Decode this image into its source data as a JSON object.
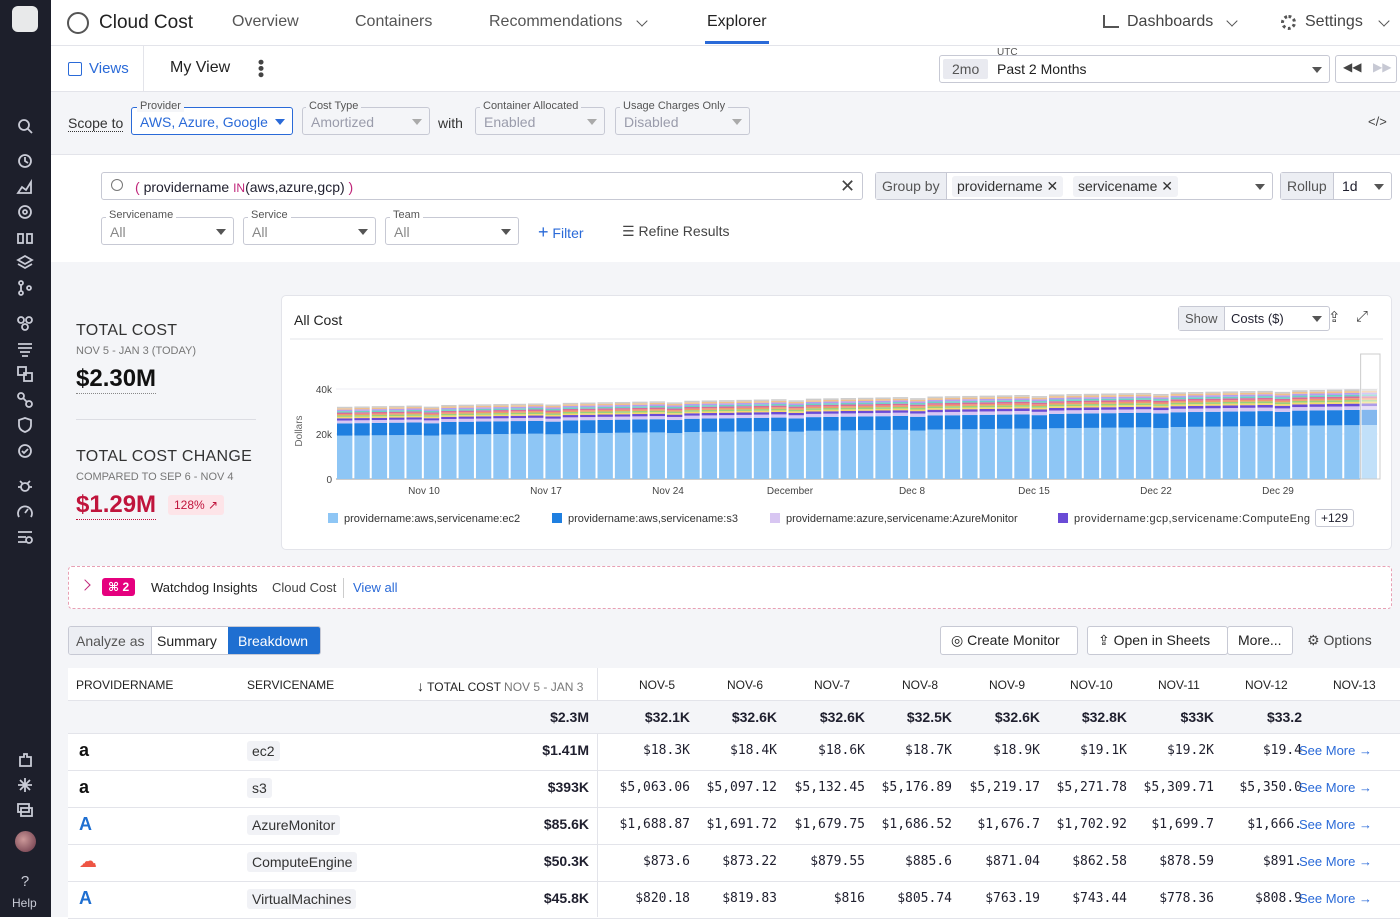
{
  "nav": {
    "app_title": "Cloud Cost",
    "overview": "Overview",
    "containers": "Containers",
    "recommendations": "Recommendations",
    "explorer": "Explorer",
    "dashboards": "Dashboards",
    "settings": "Settings",
    "help": "Help"
  },
  "views": {
    "views_label": "Views",
    "view_name": "My View",
    "tz": "UTC",
    "time_badge": "2mo",
    "time_value": "Past 2 Months"
  },
  "scope": {
    "scope_label": "Scope to",
    "provider_label": "Provider",
    "provider_value": "AWS, Azure, Google",
    "costtype_label": "Cost Type",
    "costtype_value": "Amortized",
    "with": "with",
    "container_label": "Container Allocated",
    "container_value": "Enabled",
    "usage_label": "Usage Charges Only",
    "usage_value": "Disabled"
  },
  "query": {
    "paren_open": "(",
    "key": "providername",
    "op": "IN",
    "val": "(aws,azure,gcp)",
    "paren_close": ")",
    "groupby_label": "Group by",
    "group1": "providername",
    "group2": "servicename",
    "rollup_label": "Rollup",
    "rollup_value": "1d"
  },
  "filters": {
    "servicename_label": "Servicename",
    "servicename_value": "All",
    "service_label": "Service",
    "service_value": "All",
    "team_label": "Team",
    "team_value": "All",
    "add_filter": "Filter",
    "refine": "Refine Results"
  },
  "kpi": {
    "total_title": "TOTAL COST",
    "total_range": "NOV 5 - JAN 3 (TODAY)",
    "total_value": "$2.30M",
    "change_title": "TOTAL COST CHANGE",
    "change_range": "COMPARED TO SEP 6 - NOV 4",
    "change_value": "$1.29M",
    "change_pct": "128% ↗"
  },
  "chart": {
    "title": "All Cost",
    "show": "Show",
    "show_value": "Costs ($)",
    "ylabel": "Dollars",
    "more_legend": "+129"
  },
  "chart_data": {
    "type": "bar",
    "stacked": true,
    "ylim": [
      0,
      40000
    ],
    "yticks": [
      "0",
      "20k",
      "40k"
    ],
    "xticks": [
      "Nov 10",
      "Nov 17",
      "Nov 24",
      "December",
      "Dec 8",
      "Dec 15",
      "Dec 22",
      "Dec 29"
    ],
    "series": [
      {
        "name": "providername:aws,servicename:ec2",
        "color": "#8ec6f5"
      },
      {
        "name": "providername:aws,servicename:s3",
        "color": "#1f7fe0"
      },
      {
        "name": "providername:azure,servicename:AzureMonitor",
        "color": "#d8c6f2"
      },
      {
        "name": "providername:gcp,servicename:ComputeEng",
        "color": "#6a4bd6"
      }
    ],
    "totals_start": 32100,
    "totals_end": 40000
  },
  "watchdog": {
    "count": "2",
    "label": "Watchdog Insights",
    "product": "Cloud Cost",
    "view_all": "View all"
  },
  "analyze": {
    "label": "Analyze as",
    "summary": "Summary",
    "breakdown": "Breakdown",
    "create_monitor": "Create Monitor",
    "open_sheets": "Open in Sheets",
    "more": "More...",
    "options": "Options"
  },
  "table": {
    "headers": {
      "provider": "PROVIDERNAME",
      "service": "SERVICENAME",
      "total": "TOTAL COST",
      "total_range": "NOV 5 - JAN 3",
      "d1": "NOV-5",
      "d2": "NOV-6",
      "d3": "NOV-7",
      "d4": "NOV-8",
      "d5": "NOV-9",
      "d6": "NOV-10",
      "d7": "NOV-11",
      "d8": "NOV-12",
      "d9": "NOV-13"
    },
    "totals": [
      "$2.3M",
      "$32.1K",
      "$32.6K",
      "$32.6K",
      "$32.5K",
      "$32.6K",
      "$32.8K",
      "$33K",
      "$33.2"
    ],
    "see_more": "See More",
    "rows": [
      {
        "provider": "aws",
        "service": "ec2",
        "total": "$1.41M",
        "days": [
          "$18.3K",
          "$18.4K",
          "$18.6K",
          "$18.7K",
          "$18.9K",
          "$19.1K",
          "$19.2K",
          "$19.4"
        ]
      },
      {
        "provider": "aws",
        "service": "s3",
        "total": "$393K",
        "days": [
          "$5,063.06",
          "$5,097.12",
          "$5,132.45",
          "$5,176.89",
          "$5,219.17",
          "$5,271.78",
          "$5,309.71",
          "$5,350.0"
        ]
      },
      {
        "provider": "azure",
        "service": "AzureMonitor",
        "total": "$85.6K",
        "days": [
          "$1,688.87",
          "$1,691.72",
          "$1,679.75",
          "$1,686.52",
          "$1,676.7",
          "$1,702.92",
          "$1,699.7",
          "$1,666."
        ]
      },
      {
        "provider": "gcp",
        "service": "ComputeEngine",
        "total": "$50.3K",
        "days": [
          "$873.6",
          "$873.22",
          "$879.55",
          "$885.6",
          "$871.04",
          "$862.58",
          "$878.59",
          "$891."
        ]
      },
      {
        "provider": "azure",
        "service": "VirtualMachines",
        "total": "$45.8K",
        "days": [
          "$820.18",
          "$819.83",
          "$816",
          "$805.74",
          "$763.19",
          "$743.44",
          "$778.36",
          "$808.9"
        ]
      }
    ]
  }
}
